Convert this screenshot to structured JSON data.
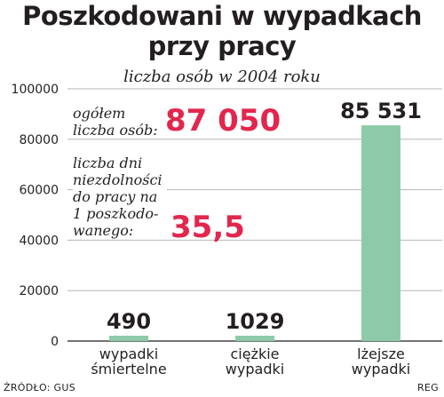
{
  "header": {
    "title_line1": "Poszkodowani w wypadkach",
    "title_line2": "przy pracy",
    "subtitle": "liczba osób w 2004 roku"
  },
  "annotations": {
    "total_label": "ogółem liczba osób:",
    "total_value": "87 050",
    "days_label": "liczba dni niezdolności do pracy na 1 poszkodo-wanego:",
    "days_value": "35,5"
  },
  "footer": {
    "source": "ŹRÓDŁO: GUS",
    "credit": "REG"
  },
  "colors": {
    "bar": "#8ecaaa",
    "highlight": "#e2264d",
    "text": "#231f20"
  },
  "chart_data": {
    "type": "bar",
    "title": "Poszkodowani w wypadkach przy pracy",
    "subtitle": "liczba osób w 2004 roku",
    "categories": [
      [
        "wypadki",
        "śmiertelne"
      ],
      [
        "ciężkie",
        "wypadki"
      ],
      [
        "lżejsze",
        "wypadki"
      ]
    ],
    "values": [
      490,
      1029,
      85531
    ],
    "value_labels": [
      "490",
      "1029",
      "85 531"
    ],
    "yticks": [
      0,
      20000,
      40000,
      60000,
      80000,
      100000
    ],
    "ylim": [
      0,
      100000
    ],
    "grid": true,
    "xlabel": "",
    "ylabel": ""
  }
}
